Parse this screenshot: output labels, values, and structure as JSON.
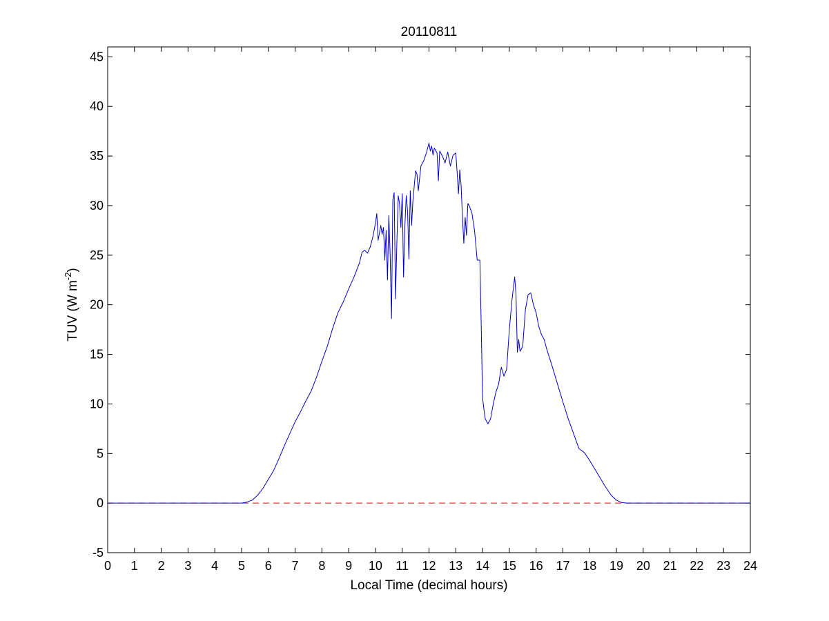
{
  "chart_data": {
    "type": "line",
    "title": "20110811",
    "xlabel": "Local Time (decimal hours)",
    "ylabel_main": "TUV (W m",
    "ylabel_exp": "-2",
    "ylabel_close": ")",
    "xlim": [
      0,
      24
    ],
    "ylim": [
      -5,
      46
    ],
    "xticks": [
      "0",
      "1",
      "2",
      "3",
      "4",
      "5",
      "6",
      "7",
      "8",
      "9",
      "10",
      "11",
      "12",
      "13",
      "14",
      "15",
      "16",
      "17",
      "18",
      "19",
      "20",
      "21",
      "22",
      "23",
      "24"
    ],
    "yticks": [
      "-5",
      "0",
      "5",
      "10",
      "15",
      "20",
      "25",
      "30",
      "35",
      "40",
      "45"
    ],
    "grid": false,
    "colors": {
      "series": "#0000cc",
      "reference": "#ff0000",
      "axes": "#000000"
    },
    "reference_line": {
      "y": 0,
      "style": "dashed"
    },
    "series": [
      {
        "x": [
          0,
          5.0,
          5.2,
          5.4,
          5.6,
          5.8,
          6.0,
          6.2,
          6.4,
          6.6,
          6.8,
          7.0,
          7.2,
          7.4,
          7.6,
          7.8,
          8.0,
          8.2,
          8.4,
          8.6,
          8.8,
          9.0,
          9.2,
          9.4,
          9.5,
          9.6,
          9.7,
          9.8,
          9.9,
          10.0,
          10.05,
          10.1,
          10.2,
          10.25,
          10.3,
          10.35,
          10.4,
          10.45,
          10.5,
          10.55,
          10.6,
          10.65,
          10.7,
          10.75,
          10.8,
          10.85,
          10.9,
          10.95,
          11.0,
          11.05,
          11.1,
          11.15,
          11.2,
          11.25,
          11.3,
          11.35,
          11.4,
          11.45,
          11.5,
          11.55,
          11.6,
          11.7,
          11.8,
          11.9,
          12.0,
          12.05,
          12.1,
          12.15,
          12.2,
          12.3,
          12.35,
          12.4,
          12.5,
          12.6,
          12.7,
          12.8,
          12.9,
          13.0,
          13.05,
          13.1,
          13.15,
          13.2,
          13.25,
          13.3,
          13.35,
          13.4,
          13.45,
          13.5,
          13.6,
          13.7,
          13.8,
          13.9,
          13.95,
          14.0,
          14.05,
          14.1,
          14.2,
          14.3,
          14.4,
          14.5,
          14.6,
          14.7,
          14.8,
          14.9,
          15.0,
          15.1,
          15.2,
          15.25,
          15.3,
          15.35,
          15.4,
          15.5,
          15.6,
          15.7,
          15.8,
          15.9,
          16.0,
          16.1,
          16.2,
          16.3,
          16.4,
          16.6,
          16.8,
          17.0,
          17.2,
          17.4,
          17.6,
          17.8,
          18.0,
          18.2,
          18.4,
          18.6,
          18.8,
          19.0,
          19.2,
          19.4,
          19.6,
          24
        ],
        "y": [
          0,
          0,
          0.1,
          0.3,
          0.8,
          1.5,
          2.4,
          3.3,
          4.5,
          5.8,
          7.0,
          8.2,
          9.2,
          10.3,
          11.3,
          12.7,
          14.3,
          15.8,
          17.6,
          19.2,
          20.3,
          21.6,
          22.8,
          24.2,
          25.3,
          25.5,
          25.2,
          25.8,
          26.8,
          28.2,
          29.2,
          26.5,
          28.0,
          27.1,
          27.8,
          24.5,
          27.5,
          22.5,
          29.0,
          25.0,
          18.6,
          30.6,
          31.3,
          20.6,
          26.2,
          31.0,
          30.2,
          27.8,
          31.2,
          22.8,
          28.0,
          31.0,
          29.5,
          24.6,
          31.5,
          28.0,
          30.5,
          32.0,
          33.5,
          33.2,
          31.5,
          34.0,
          34.5,
          35.3,
          36.3,
          35.5,
          36.0,
          35.1,
          35.8,
          35.3,
          32.5,
          35.5,
          35.0,
          34.3,
          35.4,
          34.0,
          35.1,
          35.3,
          33.4,
          31.2,
          33.6,
          32.0,
          28.8,
          26.2,
          28.8,
          27.0,
          30.2,
          30.0,
          29.3,
          27.5,
          24.5,
          24.5,
          18.0,
          10.6,
          9.5,
          8.5,
          8.0,
          8.5,
          10.0,
          11.2,
          12.0,
          13.7,
          12.8,
          13.5,
          17.5,
          20.5,
          22.8,
          21.0,
          15.2,
          16.5,
          15.3,
          15.8,
          19.5,
          21.0,
          21.2,
          20.0,
          19.2,
          17.8,
          17.0,
          16.5,
          15.5,
          13.8,
          12.0,
          10.2,
          8.5,
          7.0,
          5.5,
          5.1,
          4.3,
          3.4,
          2.5,
          1.6,
          0.8,
          0.3,
          0.05,
          0,
          0,
          0
        ]
      }
    ]
  }
}
